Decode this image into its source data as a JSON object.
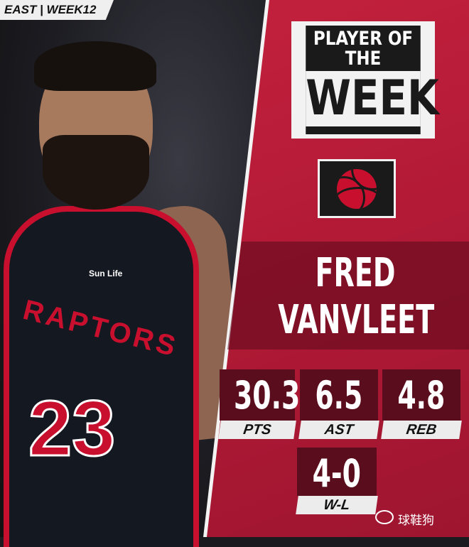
{
  "header_tag": "EAST | WEEK12",
  "title": {
    "line1": "PLAYER OF",
    "line2": "THE",
    "line3": "WEEK"
  },
  "team_logo": "raptors-basketball-logo",
  "jersey": {
    "team": "RAPTORS",
    "number": "23",
    "sponsor": "Sun Life"
  },
  "player": {
    "first_name": "FRED",
    "last_name": "VANVLEET"
  },
  "stats": [
    {
      "value": "30.3",
      "label": "PTS"
    },
    {
      "value": "6.5",
      "label": "AST"
    },
    {
      "value": "4.8",
      "label": "REB"
    },
    {
      "value": "4-0",
      "label": "W-L"
    }
  ],
  "watermark": "球鞋狗",
  "colors": {
    "red": "#c7233f",
    "dark_red": "#5a0d1c",
    "white": "#f2f2f2",
    "black": "#1a1a1a"
  }
}
